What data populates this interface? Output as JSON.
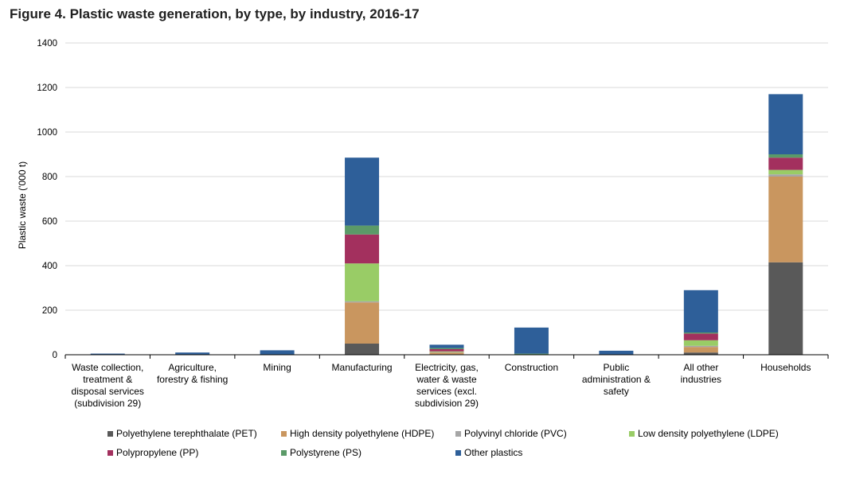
{
  "chart_data": {
    "type": "bar",
    "stacked": true,
    "title": "Figure 4. Plastic waste generation, by type, by industry, 2016-17",
    "ylabel": "Plastic waste ('000 t)",
    "xlabel": "",
    "ylim": [
      0,
      1400
    ],
    "yticks": [
      0,
      200,
      400,
      600,
      800,
      1000,
      1200,
      1400
    ],
    "grid": true,
    "legend_position": "bottom",
    "categories": [
      [
        "Waste collection,",
        "treatment &",
        "disposal services",
        "(subdivision 29)"
      ],
      [
        "Agriculture,",
        "forestry & fishing"
      ],
      [
        "Mining"
      ],
      [
        "Manufacturing"
      ],
      [
        "Electricity, gas,",
        "water & waste",
        "services (excl.",
        "subdivision 29)"
      ],
      [
        "Construction"
      ],
      [
        "Public",
        "administration &",
        "safety"
      ],
      [
        "All other",
        "industries"
      ],
      [
        "Households"
      ]
    ],
    "series": [
      {
        "name": "Polyethylene terephthalate (PET)",
        "color": "#595959",
        "values": [
          0,
          0,
          0,
          50,
          2,
          0,
          0,
          10,
          415
        ]
      },
      {
        "name": "High density polyethylene (HDPE)",
        "color": "#c9965f",
        "values": [
          0,
          0,
          0,
          185,
          8,
          0,
          0,
          25,
          385
        ]
      },
      {
        "name": "Polyvinyl chloride (PVC)",
        "color": "#a6a6a6",
        "values": [
          0,
          0,
          0,
          5,
          2,
          0,
          0,
          5,
          10
        ]
      },
      {
        "name": "Low density polyethylene (LDPE)",
        "color": "#99cc66",
        "values": [
          0,
          0,
          0,
          170,
          3,
          0,
          0,
          25,
          20
        ]
      },
      {
        "name": "Polypropylene (PP)",
        "color": "#a3305e",
        "values": [
          0,
          0,
          0,
          130,
          10,
          0,
          0,
          30,
          55
        ]
      },
      {
        "name": "Polystyrene (PS)",
        "color": "#5b9a68",
        "values": [
          0,
          0,
          0,
          40,
          5,
          5,
          0,
          5,
          15
        ]
      },
      {
        "name": "Other plastics",
        "color": "#2e5f99",
        "values": [
          5,
          10,
          20,
          305,
          15,
          117,
          18,
          190,
          270
        ]
      }
    ]
  }
}
